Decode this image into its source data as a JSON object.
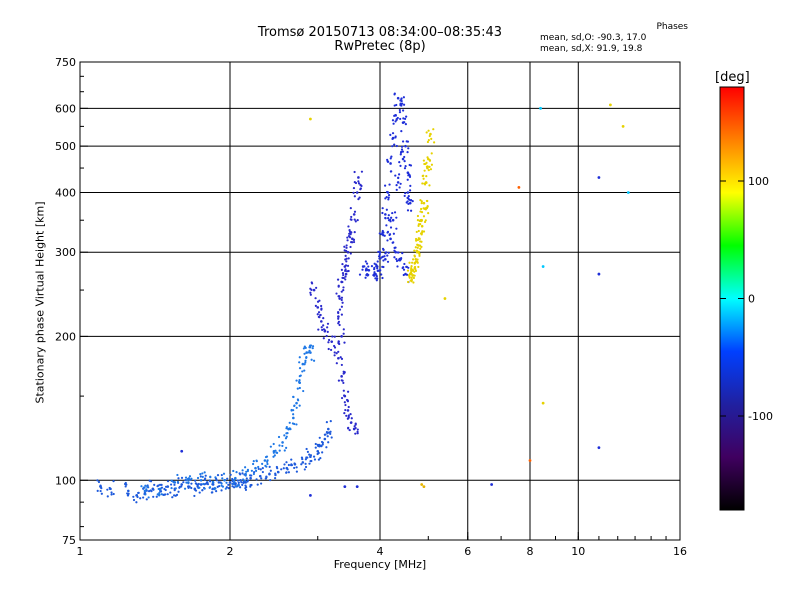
{
  "header": {
    "title_line1": "Tromsø 20150713 08:34:00–08:35:43",
    "title_line2": "RwPretec (8p)"
  },
  "phases_box": {
    "heading": "Phases",
    "o_stats": "mean, sd,O: -90.3, 17.0",
    "x_stats": "mean, sd,X:  91.9, 19.8"
  },
  "colorbar": {
    "title": "[deg]",
    "range": [
      -180,
      180
    ],
    "ticks": [
      "100",
      "0",
      "-100"
    ],
    "tick_values": [
      100,
      0,
      -100
    ],
    "colors": [
      "#ff0000",
      "#ff8000",
      "#ffff00",
      "#00ff00",
      "#00ffff",
      "#0040ff",
      "#2020a0",
      "#400060",
      "#000000"
    ]
  },
  "chart_data": {
    "type": "scatter",
    "xlabel": "Frequency [MHz]",
    "ylabel": "Stationary phase Virtual Height [km]",
    "xscale": "log2",
    "yscale": "log",
    "xlim": [
      1,
      16
    ],
    "ylim": [
      75,
      750
    ],
    "x_ticks": [
      1,
      2,
      4,
      6,
      8,
      10,
      16
    ],
    "x_tick_labels": [
      "1",
      "2",
      "4",
      "6",
      "8",
      "10",
      "16"
    ],
    "y_ticks": [
      75,
      100,
      200,
      300,
      400,
      500,
      600,
      750
    ],
    "y_tick_labels": [
      "75",
      "100",
      "200",
      "300",
      "400",
      "500",
      "600",
      "750"
    ],
    "grid_x": [
      2,
      4,
      6,
      8,
      10
    ],
    "grid_y": [
      100,
      200,
      300,
      400,
      500,
      600
    ],
    "series": [
      {
        "color": "#1e5adc",
        "points": [
          [
            1.1,
            97
          ],
          [
            1.15,
            96
          ],
          [
            1.25,
            95
          ],
          [
            1.3,
            93
          ],
          [
            1.35,
            94
          ],
          [
            1.4,
            96
          ],
          [
            1.45,
            95
          ],
          [
            1.5,
            97
          ],
          [
            1.55,
            96
          ],
          [
            1.6,
            98
          ],
          [
            1.65,
            97
          ],
          [
            1.7,
            96
          ],
          [
            1.75,
            98
          ],
          [
            1.8,
            99
          ],
          [
            1.85,
            98
          ],
          [
            1.9,
            99
          ],
          [
            2.0,
            99
          ],
          [
            2.05,
            98
          ],
          [
            2.1,
            100
          ],
          [
            2.15,
            99
          ],
          [
            2.2,
            101
          ],
          [
            2.3,
            102
          ],
          [
            2.4,
            103
          ],
          [
            2.5,
            104
          ],
          [
            2.6,
            106
          ],
          [
            2.7,
            108
          ],
          [
            2.8,
            109
          ],
          [
            2.9,
            112
          ],
          [
            3.0,
            115
          ],
          [
            3.05,
            118
          ],
          [
            3.1,
            122
          ],
          [
            3.15,
            128
          ]
        ]
      },
      {
        "color": "#1e78e6",
        "points": [
          [
            1.35,
            95
          ],
          [
            1.45,
            96
          ],
          [
            1.55,
            99
          ],
          [
            1.65,
            99
          ],
          [
            1.75,
            100
          ],
          [
            1.85,
            99
          ],
          [
            1.95,
            100
          ],
          [
            2.05,
            101
          ],
          [
            2.15,
            103
          ],
          [
            2.25,
            106
          ],
          [
            2.35,
            110
          ],
          [
            2.45,
            115
          ],
          [
            2.55,
            120
          ],
          [
            2.62,
            128
          ],
          [
            2.68,
            135
          ],
          [
            2.72,
            145
          ],
          [
            2.76,
            160
          ],
          [
            2.8,
            175
          ],
          [
            2.85,
            185
          ],
          [
            2.9,
            185
          ]
        ]
      },
      {
        "color": "#2a2acc",
        "points": [
          [
            2.95,
            250
          ],
          [
            3.0,
            230
          ],
          [
            3.05,
            215
          ],
          [
            3.1,
            205
          ],
          [
            3.2,
            195
          ],
          [
            3.3,
            180
          ],
          [
            3.35,
            165
          ],
          [
            3.4,
            150
          ],
          [
            3.45,
            140
          ],
          [
            3.5,
            132
          ],
          [
            3.55,
            128
          ],
          [
            3.35,
            200
          ],
          [
            3.3,
            220
          ],
          [
            3.32,
            240
          ],
          [
            3.35,
            260
          ],
          [
            3.4,
            280
          ],
          [
            3.45,
            300
          ],
          [
            3.5,
            330
          ],
          [
            3.55,
            360
          ],
          [
            3.6,
            400
          ],
          [
            3.62,
            430
          ],
          [
            3.52,
            320
          ],
          [
            3.42,
            270
          ]
        ]
      },
      {
        "color": "#1f2fd8",
        "points": [
          [
            3.7,
            280
          ],
          [
            3.8,
            275
          ],
          [
            3.9,
            270
          ],
          [
            3.95,
            280
          ],
          [
            4.0,
            300
          ],
          [
            4.05,
            330
          ],
          [
            4.1,
            360
          ],
          [
            4.15,
            400
          ],
          [
            4.2,
            460
          ],
          [
            4.25,
            520
          ],
          [
            4.3,
            580
          ],
          [
            4.35,
            630
          ],
          [
            4.4,
            610
          ],
          [
            4.45,
            560
          ],
          [
            4.5,
            500
          ],
          [
            4.55,
            440
          ],
          [
            4.6,
            380
          ],
          [
            4.3,
            300
          ],
          [
            4.4,
            290
          ],
          [
            4.5,
            270
          ],
          [
            4.2,
            320
          ],
          [
            4.25,
            350
          ],
          [
            4.35,
            420
          ],
          [
            4.45,
            470
          ],
          [
            4.55,
            400
          ],
          [
            4.1,
            290
          ],
          [
            4.0,
            275
          ]
        ]
      },
      {
        "color": "#e6d200",
        "points": [
          [
            4.6,
            270
          ],
          [
            4.65,
            275
          ],
          [
            4.7,
            285
          ],
          [
            4.75,
            300
          ],
          [
            4.8,
            320
          ],
          [
            4.85,
            350
          ],
          [
            4.9,
            380
          ],
          [
            4.95,
            420
          ],
          [
            5.0,
            470
          ],
          [
            5.05,
            530
          ],
          [
            4.72,
            290
          ],
          [
            4.78,
            310
          ],
          [
            4.86,
            340
          ],
          [
            4.92,
            370
          ],
          [
            4.65,
            268
          ],
          [
            4.98,
            450
          ]
        ]
      }
    ],
    "outliers": [
      {
        "x": 2.9,
        "y": 570,
        "color": "#e6d200"
      },
      {
        "x": 5.4,
        "y": 240,
        "color": "#e6d200"
      },
      {
        "x": 4.85,
        "y": 98,
        "color": "#e6b400"
      },
      {
        "x": 4.9,
        "y": 97,
        "color": "#e6b400"
      },
      {
        "x": 2.9,
        "y": 93,
        "color": "#1f2fd8"
      },
      {
        "x": 3.4,
        "y": 97,
        "color": "#1f2fd8"
      },
      {
        "x": 3.6,
        "y": 97,
        "color": "#1f2fd8"
      },
      {
        "x": 6.7,
        "y": 98,
        "color": "#1f2fd8"
      },
      {
        "x": 7.6,
        "y": 410,
        "color": "#ff6000"
      },
      {
        "x": 8.0,
        "y": 110,
        "color": "#ff6000"
      },
      {
        "x": 8.4,
        "y": 600,
        "color": "#00c8ff"
      },
      {
        "x": 8.5,
        "y": 280,
        "color": "#00c8ff"
      },
      {
        "x": 8.5,
        "y": 145,
        "color": "#e6d200"
      },
      {
        "x": 11.0,
        "y": 430,
        "color": "#1f2fd8"
      },
      {
        "x": 11.0,
        "y": 270,
        "color": "#1f2fd8"
      },
      {
        "x": 11.0,
        "y": 117,
        "color": "#1f2fd8"
      },
      {
        "x": 11.6,
        "y": 610,
        "color": "#e6d200"
      },
      {
        "x": 12.3,
        "y": 550,
        "color": "#e6d200"
      },
      {
        "x": 12.6,
        "y": 400,
        "color": "#00c8ff"
      },
      {
        "x": 1.6,
        "y": 115,
        "color": "#1f2fd8"
      }
    ]
  }
}
